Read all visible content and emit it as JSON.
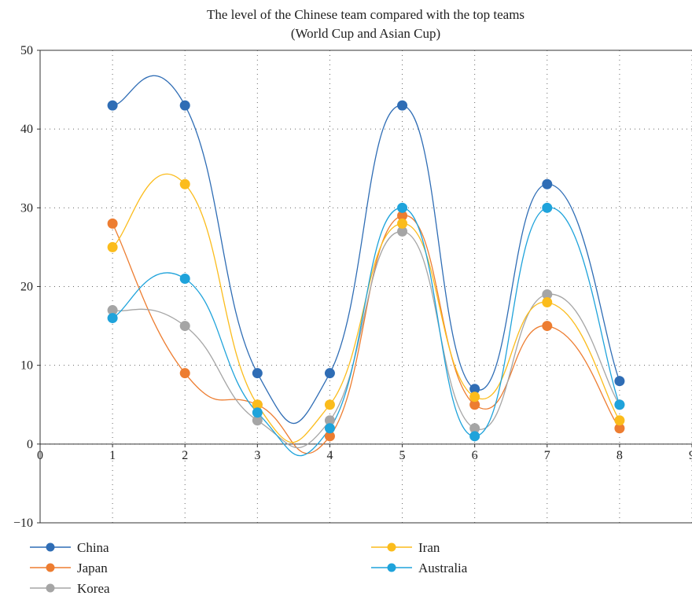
{
  "chart_data": {
    "type": "line",
    "title": "The level of the Chinese team compared with the top teams",
    "subtitle": "(World Cup and Asian Cup)",
    "xlabel": "",
    "ylabel": "",
    "xlim": [
      0,
      9
    ],
    "ylim": [
      -10,
      50
    ],
    "x_ticks": [
      "0",
      "1",
      "2",
      "3",
      "4",
      "5",
      "6",
      "7",
      "8",
      "9"
    ],
    "y_ticks": [
      "−10",
      "0",
      "10",
      "20",
      "30",
      "40",
      "50"
    ],
    "x": [
      1,
      2,
      3,
      4,
      5,
      6,
      7,
      8
    ],
    "grid": true,
    "smooth": true,
    "legend_position": "bottom",
    "series": [
      {
        "name": "China",
        "color": "#2f6db5",
        "values": [
          43,
          43,
          9,
          9,
          43,
          7,
          33,
          8
        ]
      },
      {
        "name": "Japan",
        "color": "#ed7d31",
        "values": [
          28,
          9,
          5,
          1,
          29,
          5,
          15,
          2
        ]
      },
      {
        "name": "Korea",
        "color": "#a5a5a5",
        "values": [
          17,
          15,
          3,
          3,
          27,
          2,
          19,
          5
        ]
      },
      {
        "name": "Iran",
        "color": "#fbbc1c",
        "values": [
          25,
          33,
          5,
          5,
          28,
          6,
          18,
          3
        ]
      },
      {
        "name": "Australia",
        "color": "#1fa3db",
        "values": [
          16,
          21,
          4,
          2,
          30,
          1,
          30,
          5
        ]
      }
    ]
  }
}
